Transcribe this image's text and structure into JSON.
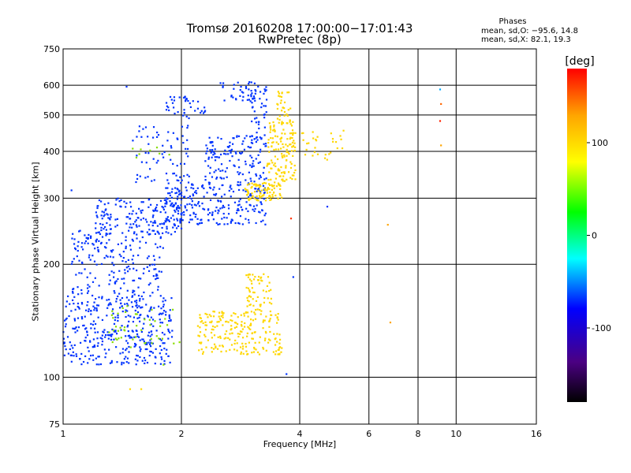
{
  "chart_data": {
    "type": "scatter",
    "title_line1": "Tromsø 20160208 17:00:00−17:01:43",
    "title_line2": "RwPretec (8p)",
    "xlabel": "Frequency [MHz]",
    "ylabel": "Stationary phase Virtual Height [km]",
    "x_scale": "log",
    "y_scale": "log",
    "xlim": [
      1,
      16
    ],
    "ylim": [
      75,
      750
    ],
    "x_ticks": [
      1,
      2,
      4,
      6,
      8,
      10,
      16
    ],
    "y_ticks": [
      75,
      100,
      200,
      300,
      400,
      500,
      600,
      750
    ],
    "grid": true,
    "legend": {
      "title": "Phases",
      "o_stats": "mean, sd,O: −95.6, 14.8",
      "x_stats": "mean, sd,X:  82.1, 19.3"
    },
    "colorbar": {
      "label": "[deg]",
      "range": [
        -180,
        180
      ],
      "ticks": [
        100,
        0,
        -100
      ],
      "colors": [
        "#000000",
        "#4b0082",
        "#0000ff",
        "#00ffff",
        "#00ff00",
        "#ffff00",
        "#ffa500",
        "#ff0000"
      ]
    },
    "series": [
      {
        "marker": "dot",
        "phase_deg": -100,
        "color": "#0033ff",
        "clusters": [
          {
            "f": [
              1.0,
              1.9
            ],
            "h": [
              108,
              165
            ],
            "n": 380
          },
          {
            "f": [
              1.05,
              1.8
            ],
            "h": [
              165,
              240
            ],
            "n": 170
          },
          {
            "f": [
              1.2,
              2.0
            ],
            "h": [
              240,
              300
            ],
            "n": 180
          },
          {
            "f": [
              1.8,
              3.3
            ],
            "h": [
              255,
              330
            ],
            "n": 240
          },
          {
            "f": [
              2.3,
              3.3
            ],
            "h": [
              330,
              440
            ],
            "n": 140
          },
          {
            "f": [
              1.5,
              2.1
            ],
            "h": [
              330,
              470
            ],
            "n": 70
          },
          {
            "f": [
              1.8,
              2.3
            ],
            "h": [
              490,
              560
            ],
            "n": 40
          },
          {
            "f": [
              2.5,
              3.1
            ],
            "h": [
              540,
              620
            ],
            "n": 40
          },
          {
            "f": [
              3.0,
              3.3
            ],
            "h": [
              420,
              600
            ],
            "n": 40
          },
          {
            "f": [
              1.05,
              1.3
            ],
            "h": [
              220,
              250
            ],
            "n": 25
          }
        ]
      },
      {
        "marker": "dot",
        "phase_deg": 90,
        "color": "#ffd700",
        "clusters": [
          {
            "f": [
              2.2,
              3.6
            ],
            "h": [
              115,
              150
            ],
            "n": 220
          },
          {
            "f": [
              2.9,
              3.4
            ],
            "h": [
              150,
              190
            ],
            "n": 60
          },
          {
            "f": [
              2.9,
              3.6
            ],
            "h": [
              295,
              330
            ],
            "n": 90
          },
          {
            "f": [
              3.3,
              3.9
            ],
            "h": [
              330,
              480
            ],
            "n": 140
          },
          {
            "f": [
              3.5,
              3.8
            ],
            "h": [
              480,
              580
            ],
            "n": 30
          },
          {
            "f": [
              4.0,
              5.2
            ],
            "h": [
              380,
              460
            ],
            "n": 30
          }
        ]
      },
      {
        "marker": "dot",
        "phase_deg": 40,
        "color": "#88dd00",
        "clusters": [
          {
            "f": [
              1.3,
              2.0
            ],
            "h": [
              120,
              155
            ],
            "n": 45
          },
          {
            "f": [
              1.5,
              1.9
            ],
            "h": [
              385,
              410
            ],
            "n": 8
          }
        ]
      }
    ],
    "outliers": [
      {
        "x": 1.48,
        "y": 93,
        "color": "#ffd700"
      },
      {
        "x": 1.58,
        "y": 93,
        "color": "#ffd700"
      },
      {
        "x": 1.8,
        "y": 108,
        "color": "#88dd00"
      },
      {
        "x": 3.7,
        "y": 102,
        "color": "#0033ff"
      },
      {
        "x": 3.8,
        "y": 265,
        "color": "#ff3300"
      },
      {
        "x": 4.7,
        "y": 285,
        "color": "#0033ff"
      },
      {
        "x": 6.7,
        "y": 255,
        "color": "#ffa500"
      },
      {
        "x": 6.8,
        "y": 140,
        "color": "#ffa500"
      },
      {
        "x": 3.85,
        "y": 185,
        "color": "#0033ff"
      },
      {
        "x": 9.1,
        "y": 585,
        "color": "#00aaff"
      },
      {
        "x": 9.15,
        "y": 535,
        "color": "#ff6600"
      },
      {
        "x": 9.1,
        "y": 482,
        "color": "#ff2200"
      },
      {
        "x": 9.15,
        "y": 415,
        "color": "#ffa500"
      },
      {
        "x": 1.45,
        "y": 595,
        "color": "#0033ff"
      },
      {
        "x": 1.05,
        "y": 315,
        "color": "#0033ff"
      }
    ]
  }
}
